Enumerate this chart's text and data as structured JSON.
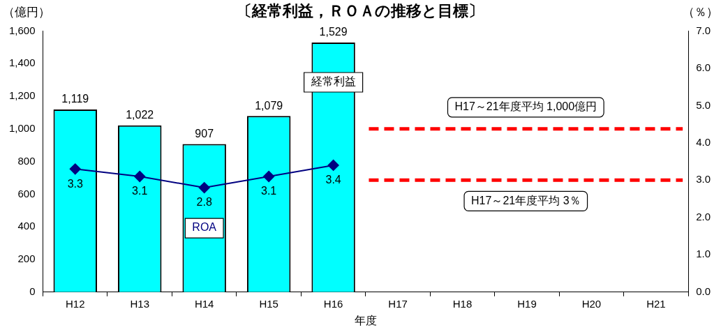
{
  "chart_data": {
    "type": "bar",
    "title": "〔経常利益，ＲＯＡの推移と目標〕",
    "xlabel": "年度",
    "ylabel": "（億円）",
    "y2label": "（％）",
    "categories": [
      "H12",
      "H13",
      "H14",
      "H15",
      "H16",
      "H17",
      "H18",
      "H19",
      "H20",
      "H21"
    ],
    "series": [
      {
        "name": "経常利益",
        "color": "#00ffff",
        "values": [
          1119,
          1022,
          907,
          1079,
          1529,
          null,
          null,
          null,
          null,
          null
        ],
        "value_labels": [
          "1,119",
          "1,022",
          "907",
          "1,079",
          "1,529",
          null,
          null,
          null,
          null,
          null
        ]
      },
      {
        "name": "ROA",
        "type": "line",
        "axis": "y2",
        "color": "#000080",
        "marker": "diamond",
        "values": [
          3.3,
          3.1,
          2.8,
          3.1,
          3.4,
          null,
          null,
          null,
          null,
          null
        ],
        "value_labels": [
          "3.3",
          "3.1",
          "2.8",
          "3.1",
          "3.4",
          null,
          null,
          null,
          null,
          null
        ]
      }
    ],
    "ylim": [
      0,
      1600
    ],
    "yticks": [
      0,
      {
        "value": 200,
        "label": "200"
      },
      {
        "value": 400,
        "label": "400"
      },
      {
        "value": 600,
        "label": "600"
      },
      {
        "value": 800,
        "label": "800"
      },
      {
        "value": 1000,
        "label": "1,000"
      },
      {
        "value": 1200,
        "label": "1,200"
      },
      {
        "value": 1400,
        "label": "1,400"
      },
      {
        "value": 1600,
        "label": "1,600"
      }
    ],
    "y2lim": [
      0,
      7
    ],
    "y2ticks": [
      {
        "value": 0,
        "label": "0.0"
      },
      {
        "value": 1,
        "label": "1.0"
      },
      {
        "value": 2,
        "label": "2.0"
      },
      {
        "value": 3,
        "label": "3.0"
      },
      {
        "value": 4,
        "label": "4.0"
      },
      {
        "value": 5,
        "label": "5.0"
      },
      {
        "value": 6,
        "label": "6.0"
      },
      {
        "value": 7,
        "label": "7.0"
      }
    ],
    "ref_lines": [
      {
        "axis": "y",
        "value": 1000,
        "label": "H17～21年度平均 1,000億円",
        "color": "#ff0000",
        "line_style": "dashed"
      },
      {
        "axis": "y2",
        "value": 3,
        "label": "H17～21年度平均 3％",
        "color": "#ff0000",
        "line_style": "dashed"
      }
    ],
    "grid": false,
    "legend": false
  }
}
